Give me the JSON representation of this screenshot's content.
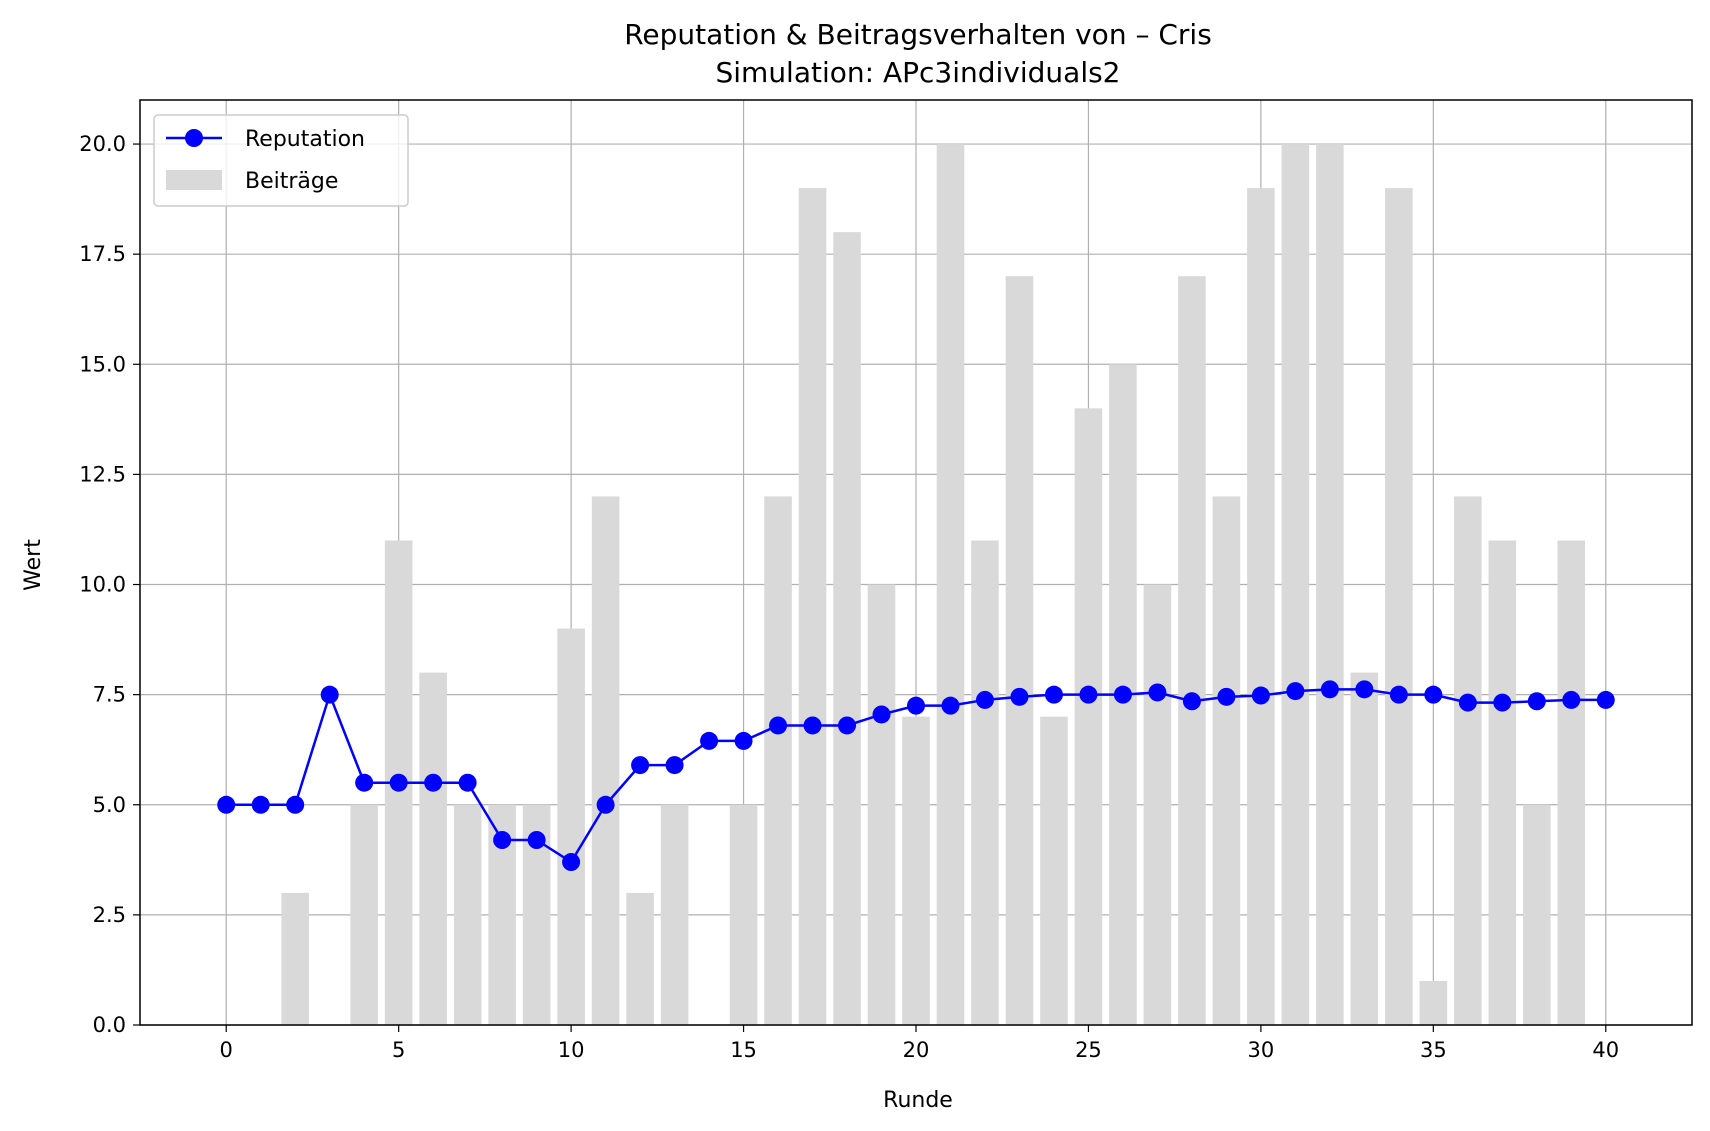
{
  "chart_data": {
    "type": "bar",
    "title": "Reputation & Beitragsverhalten von – Cris",
    "subtitle": "Simulation: APc3individuals2",
    "xlabel": "Runde",
    "ylabel": "Wert",
    "xlim": [
      -2.5,
      42.5
    ],
    "ylim": [
      0,
      21
    ],
    "xticks": [
      0,
      5,
      10,
      15,
      20,
      25,
      30,
      35,
      40
    ],
    "yticks": [
      0.0,
      2.5,
      5.0,
      7.5,
      10.0,
      12.5,
      15.0,
      17.5,
      20.0
    ],
    "xtick_labels": [
      "0",
      "5",
      "10",
      "15",
      "20",
      "25",
      "30",
      "35",
      "40"
    ],
    "ytick_labels": [
      "0.0",
      "2.5",
      "5.0",
      "7.5",
      "10.0",
      "12.5",
      "15.0",
      "17.5",
      "20.0"
    ],
    "grid": true,
    "legend_position": "top-left",
    "series": [
      {
        "name": "Reputation",
        "type": "line",
        "color": "#0000ff",
        "x": [
          0,
          1,
          2,
          3,
          4,
          5,
          6,
          7,
          8,
          9,
          10,
          11,
          12,
          13,
          14,
          15,
          16,
          17,
          18,
          19,
          20,
          21,
          22,
          23,
          24,
          25,
          26,
          27,
          28,
          29,
          30,
          31,
          32,
          33,
          34,
          35,
          36,
          37,
          38,
          39,
          40
        ],
        "values": [
          5.0,
          5.0,
          5.0,
          7.5,
          5.5,
          5.5,
          5.5,
          5.5,
          4.2,
          4.2,
          3.7,
          5.0,
          5.9,
          5.9,
          6.45,
          6.45,
          6.8,
          6.8,
          6.8,
          7.05,
          7.25,
          7.25,
          7.38,
          7.45,
          7.5,
          7.5,
          7.5,
          7.55,
          7.35,
          7.45,
          7.48,
          7.58,
          7.62,
          7.62,
          7.5,
          7.5,
          7.32,
          7.32,
          7.35,
          7.38,
          7.38
        ]
      },
      {
        "name": "Beiträge",
        "type": "bar",
        "color": "#d9d9d9",
        "x": [
          0,
          1,
          2,
          3,
          4,
          5,
          6,
          7,
          8,
          9,
          10,
          11,
          12,
          13,
          14,
          15,
          16,
          17,
          18,
          19,
          20,
          21,
          22,
          23,
          24,
          25,
          26,
          27,
          28,
          29,
          30,
          31,
          32,
          33,
          34,
          35,
          36,
          37,
          38,
          39
        ],
        "values": [
          0,
          0,
          3,
          0,
          5,
          11,
          8,
          5,
          5,
          5,
          9,
          12,
          3,
          5,
          0,
          5,
          12,
          19,
          18,
          10,
          7,
          20,
          11,
          17,
          7,
          14,
          15,
          10,
          17,
          12,
          19,
          20,
          20,
          8,
          19,
          1,
          12,
          11,
          5,
          11
        ]
      }
    ]
  }
}
